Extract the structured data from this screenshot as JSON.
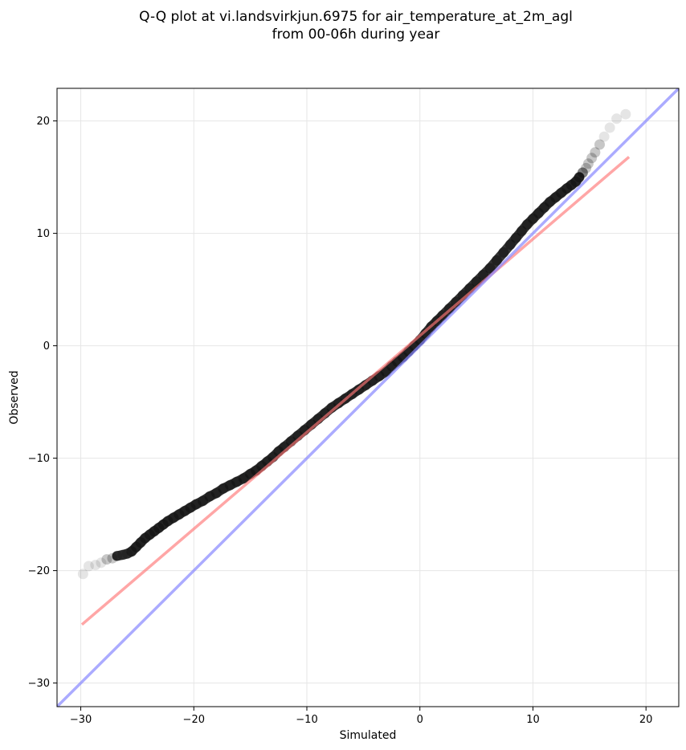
{
  "chart_data": {
    "type": "scatter",
    "title_lines": [
      "Q-Q plot at vi.landsvirkjun.6975 for air_temperature_at_2m_agl",
      "from 00-06h during year"
    ],
    "xlabel": "Simulated",
    "ylabel": "Observed",
    "xlim": [
      -32.1,
      22.9
    ],
    "ylim": [
      -32.1,
      22.9
    ],
    "xticks": [
      -30,
      -20,
      -10,
      0,
      10,
      20
    ],
    "yticks": [
      -30,
      -20,
      -10,
      0,
      10,
      20
    ],
    "xtick_labels": [
      "−30",
      "−20",
      "−10",
      "0",
      "10",
      "20"
    ],
    "ytick_labels": [
      "−30",
      "−20",
      "−10",
      "0",
      "10",
      "20"
    ],
    "grid": true,
    "series": [
      {
        "kind": "quantile_points",
        "color": "#000000",
        "x": [
          -29.8,
          -29.3,
          -28.7,
          -28.2,
          -27.7,
          -27.2,
          -26.8,
          -26.3,
          -25.9,
          -25.5,
          -25.1,
          -24.7,
          -24.3,
          -23.9,
          -23.5,
          -23.1,
          -22.7,
          -22.3,
          -21.8,
          -21.3,
          -20.8,
          -20.3,
          -19.8,
          -19.2,
          -18.6,
          -18.0,
          -17.4,
          -16.8,
          -16.2,
          -15.6,
          -15.0,
          -14.5,
          -14.0,
          -13.5,
          -13.0,
          -12.5,
          -12.0,
          -11.4,
          -10.8,
          -10.2,
          -9.6,
          -9.0,
          -8.4,
          -7.8,
          -7.2,
          -6.6,
          -6.0,
          -5.4,
          -4.8,
          -4.2,
          -3.6,
          -3.0,
          -2.5,
          -2.0,
          -1.5,
          -1.0,
          -0.5,
          0.0,
          0.5,
          1.0,
          1.5,
          2.0,
          2.6,
          3.2,
          3.8,
          4.4,
          5.0,
          5.6,
          6.2,
          6.8,
          7.4,
          8.0,
          8.5,
          9.0,
          9.5,
          10.0,
          10.5,
          11.0,
          11.5,
          12.0,
          12.5,
          13.0,
          13.4,
          13.8,
          14.1,
          14.4,
          14.7,
          14.9,
          15.2,
          15.5,
          15.9,
          16.3,
          16.8,
          17.4,
          18.2
        ],
        "y": [
          -20.3,
          -19.6,
          -19.5,
          -19.3,
          -19.0,
          -18.9,
          -18.7,
          -18.6,
          -18.5,
          -18.3,
          -17.9,
          -17.5,
          -17.1,
          -16.8,
          -16.5,
          -16.2,
          -15.9,
          -15.6,
          -15.3,
          -15.0,
          -14.7,
          -14.4,
          -14.1,
          -13.8,
          -13.4,
          -13.1,
          -12.7,
          -12.4,
          -12.1,
          -11.8,
          -11.4,
          -11.1,
          -10.7,
          -10.3,
          -9.9,
          -9.4,
          -9.0,
          -8.5,
          -8.0,
          -7.5,
          -7.0,
          -6.5,
          -6.0,
          -5.5,
          -5.1,
          -4.7,
          -4.3,
          -3.9,
          -3.5,
          -3.1,
          -2.7,
          -2.3,
          -1.8,
          -1.4,
          -1.0,
          -0.5,
          0.0,
          0.5,
          1.1,
          1.7,
          2.2,
          2.7,
          3.3,
          3.9,
          4.5,
          5.1,
          5.7,
          6.3,
          6.9,
          7.6,
          8.3,
          9.0,
          9.6,
          10.2,
          10.8,
          11.3,
          11.8,
          12.3,
          12.8,
          13.2,
          13.6,
          14.0,
          14.3,
          14.6,
          15.0,
          15.4,
          15.8,
          16.2,
          16.7,
          17.2,
          17.9,
          18.6,
          19.4,
          20.2,
          20.6
        ]
      },
      {
        "kind": "fit_line",
        "color": "#ff7777",
        "x": [
          -29.9,
          18.5
        ],
        "y": [
          -24.8,
          16.8
        ]
      },
      {
        "kind": "identity_line",
        "color": "#8888ff",
        "x": [
          -32.1,
          22.9
        ],
        "y": [
          -32.1,
          22.9
        ]
      }
    ]
  }
}
